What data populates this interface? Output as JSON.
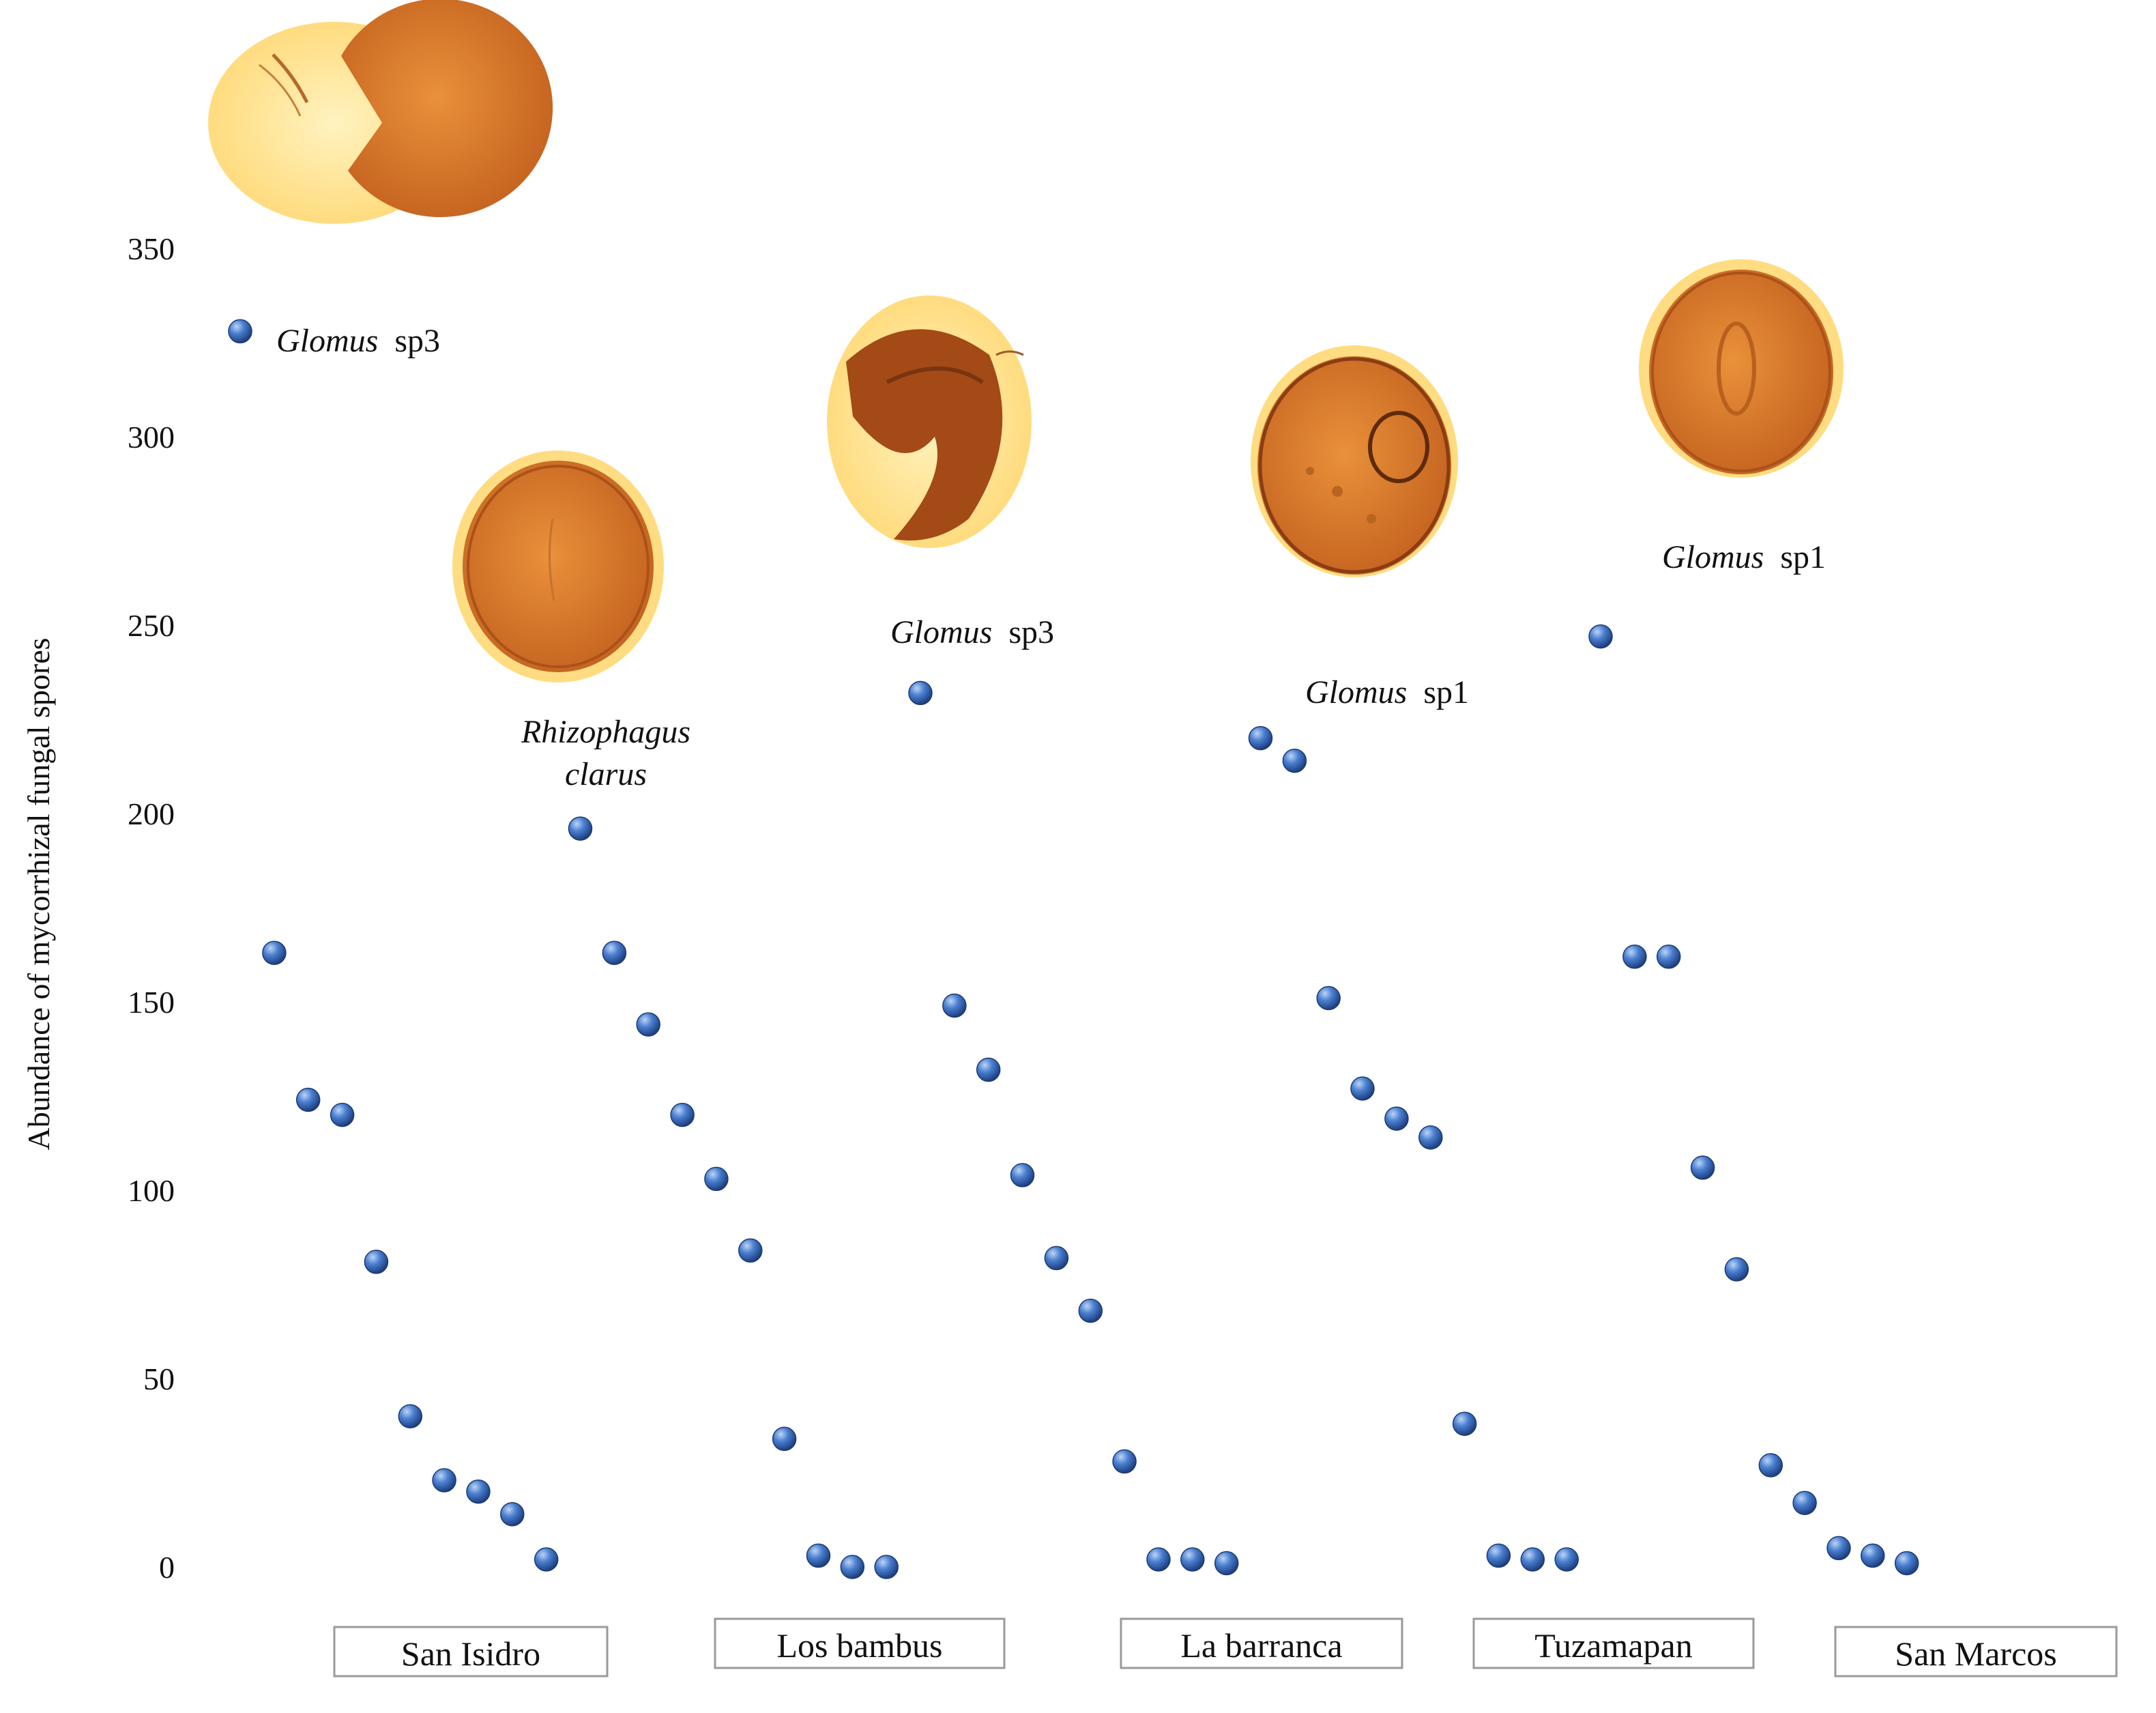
{
  "chart_data": {
    "type": "scatter",
    "ylabel": "Abundance of mycorrhizal fungal spores",
    "xlabel": "",
    "ylim": [
      0,
      350
    ],
    "yticks": [
      0,
      50,
      100,
      150,
      200,
      250,
      300,
      350
    ],
    "grid": false,
    "point_color": "#2f62b5",
    "points_per_site": 10,
    "values": [
      328,
      163,
      124,
      120,
      81,
      40,
      23,
      20,
      14,
      2,
      196,
      163,
      144,
      120,
      103,
      84,
      34,
      3,
      0,
      0,
      232,
      149,
      132,
      104,
      82,
      68,
      28,
      2,
      2,
      1,
      220,
      214,
      151,
      127,
      119,
      114,
      38,
      3,
      2,
      2,
      247,
      162,
      162,
      106,
      79,
      27,
      17,
      5,
      3,
      1
    ],
    "sites": [
      "San Isidro",
      "Los bambus",
      "La barranca",
      "Tuzamapan",
      "San Marcos"
    ],
    "annotations": [
      {
        "genus": "Glomus",
        "species": "sp3"
      },
      {
        "genus": "Rhizophagus",
        "species": "clarus"
      },
      {
        "genus": "Glomus",
        "species": "sp3"
      },
      {
        "genus": "Glomus",
        "species": "sp1"
      },
      {
        "genus": "Glomus",
        "species": "sp1"
      }
    ]
  },
  "colors": {
    "point": "#2f62b5",
    "spore_bg": "#ffe08a",
    "spore_body": "#d8782a",
    "spore_dark": "#9a4415"
  }
}
